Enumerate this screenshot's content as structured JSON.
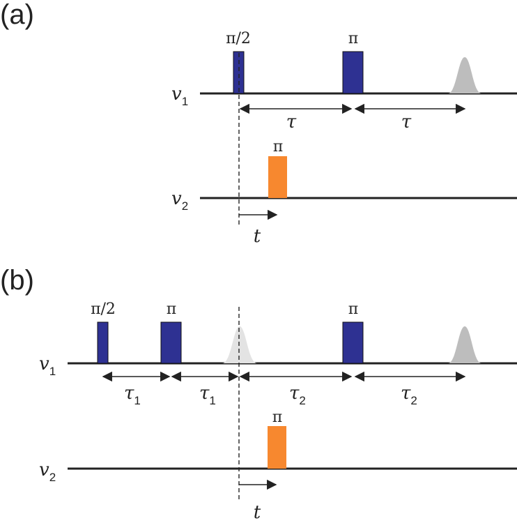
{
  "panel_a": {
    "label": "(a)",
    "channel1": {
      "symbol": "v",
      "sub": "1"
    },
    "channel2": {
      "symbol": "v",
      "sub": "2"
    },
    "pulse_pi2": "π/2",
    "pulse_pi": "π",
    "pump_pulse": "π",
    "tau_left": "τ",
    "tau_right": "τ",
    "time_var": "t"
  },
  "panel_b": {
    "label": "(b)",
    "channel1": {
      "symbol": "v",
      "sub": "1"
    },
    "channel2": {
      "symbol": "v",
      "sub": "2"
    },
    "pulse_pi2": "π/2",
    "pulse_pi_first": "π",
    "pulse_pi_second": "π",
    "pump_pulse": "π",
    "tau1_a": {
      "symbol": "τ",
      "sub": "1"
    },
    "tau1_b": {
      "symbol": "τ",
      "sub": "1"
    },
    "tau2_a": {
      "symbol": "τ",
      "sub": "2"
    },
    "tau2_b": {
      "symbol": "τ",
      "sub": "2"
    },
    "time_var": "t"
  },
  "colors": {
    "observer_pulse": "#2e3192",
    "pump_pulse": "#f7882f",
    "echo": "#bdbdbd",
    "refocused_echo": "#e3e3e3",
    "line": "#222222"
  }
}
